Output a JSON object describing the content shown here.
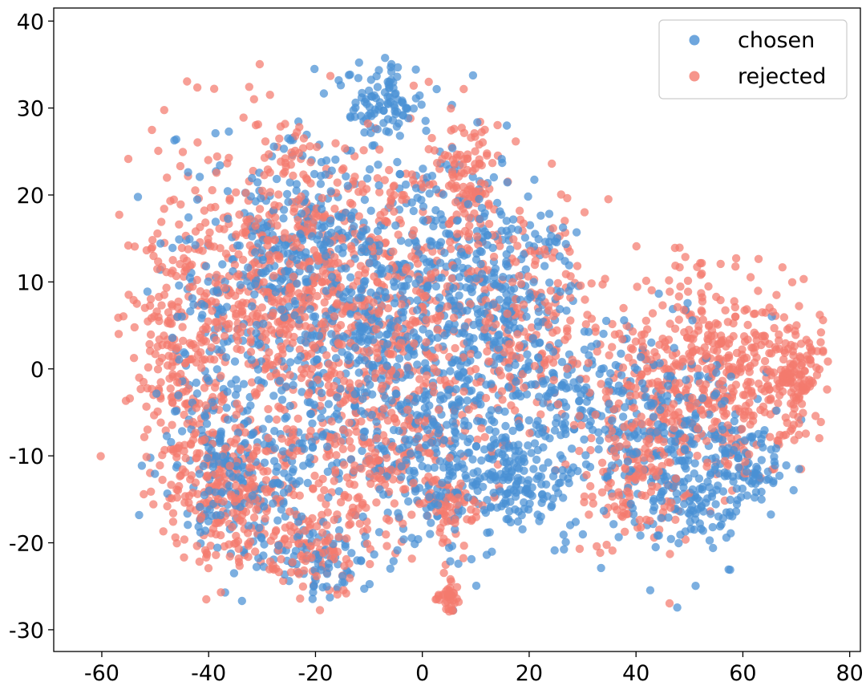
{
  "chart_data": {
    "type": "scatter",
    "title": "",
    "xlabel": "",
    "ylabel": "",
    "xlim": [
      -69,
      82
    ],
    "ylim": [
      -32.5,
      41.5
    ],
    "xticks": [
      -60,
      -40,
      -20,
      0,
      20,
      40,
      60,
      80
    ],
    "yticks": [
      -30,
      -20,
      -10,
      0,
      10,
      20,
      30,
      40
    ],
    "xtick_labels": [
      "-60",
      "-40",
      "-20",
      "0",
      "20",
      "40",
      "60",
      "80"
    ],
    "ytick_labels": [
      "-30",
      "-20",
      "-10",
      "0",
      "10",
      "20",
      "30",
      "40"
    ],
    "grid": false,
    "legend_position": "top-right",
    "series": [
      {
        "name": "chosen",
        "color": "#4a90d4",
        "clusters": [
          {
            "cx": -7,
            "cy": 31,
            "sx": 3.5,
            "sy": 2.5,
            "n": 90
          },
          {
            "cx": -35,
            "cy": -12,
            "sx": 6,
            "sy": 5,
            "n": 200
          },
          {
            "cx": -15,
            "cy": 5,
            "sx": 12,
            "sy": 10,
            "n": 520
          },
          {
            "cx": -25,
            "cy": 15,
            "sx": 7,
            "sy": 6,
            "n": 160
          },
          {
            "cx": 5,
            "cy": 5,
            "sx": 10,
            "sy": 11,
            "n": 420
          },
          {
            "cx": 18,
            "cy": 8,
            "sx": 6,
            "sy": 6,
            "n": 150
          },
          {
            "cx": 18,
            "cy": -13,
            "sx": 5,
            "sy": 3,
            "n": 130
          },
          {
            "cx": -20,
            "cy": -22,
            "sx": 6,
            "sy": 2,
            "n": 80
          },
          {
            "cx": 45,
            "cy": -7,
            "sx": 9,
            "sy": 6,
            "n": 320
          },
          {
            "cx": 62,
            "cy": -11,
            "sx": 3,
            "sy": 2,
            "n": 60
          },
          {
            "cx": 52,
            "cy": -15,
            "sx": 5,
            "sy": 3,
            "n": 90
          },
          {
            "cx": 5,
            "cy": -10,
            "sx": 10,
            "sy": 5,
            "n": 200
          },
          {
            "cx": -40,
            "cy": 5,
            "sx": 5,
            "sy": 10,
            "n": 80
          },
          {
            "cx": 28,
            "cy": -3,
            "sx": 4,
            "sy": 3,
            "n": 60
          }
        ]
      },
      {
        "name": "rejected",
        "color": "#f47a6e",
        "clusters": [
          {
            "cx": -45,
            "cy": 2,
            "sx": 5,
            "sy": 9,
            "n": 260
          },
          {
            "cx": -28,
            "cy": 10,
            "sx": 8,
            "sy": 9,
            "n": 450
          },
          {
            "cx": -5,
            "cy": 6,
            "sx": 12,
            "sy": 10,
            "n": 560
          },
          {
            "cx": 8,
            "cy": 22,
            "sx": 3,
            "sy": 3.5,
            "n": 90
          },
          {
            "cx": -35,
            "cy": -15,
            "sx": 6,
            "sy": 4,
            "n": 240
          },
          {
            "cx": -20,
            "cy": -21,
            "sx": 4,
            "sy": 3,
            "n": 90
          },
          {
            "cx": 5,
            "cy": -26,
            "sx": 1.2,
            "sy": 1.5,
            "n": 40
          },
          {
            "cx": 5,
            "cy": -16,
            "sx": 3,
            "sy": 2,
            "n": 60
          },
          {
            "cx": 55,
            "cy": -1,
            "sx": 10,
            "sy": 6,
            "n": 520
          },
          {
            "cx": 70,
            "cy": 0,
            "sx": 3,
            "sy": 3,
            "n": 90
          },
          {
            "cx": 40,
            "cy": -12,
            "sx": 5,
            "sy": 5,
            "n": 150
          },
          {
            "cx": 20,
            "cy": 5,
            "sx": 7,
            "sy": 7,
            "n": 180
          },
          {
            "cx": -10,
            "cy": -10,
            "sx": 8,
            "sy": 5,
            "n": 170
          }
        ]
      }
    ]
  }
}
